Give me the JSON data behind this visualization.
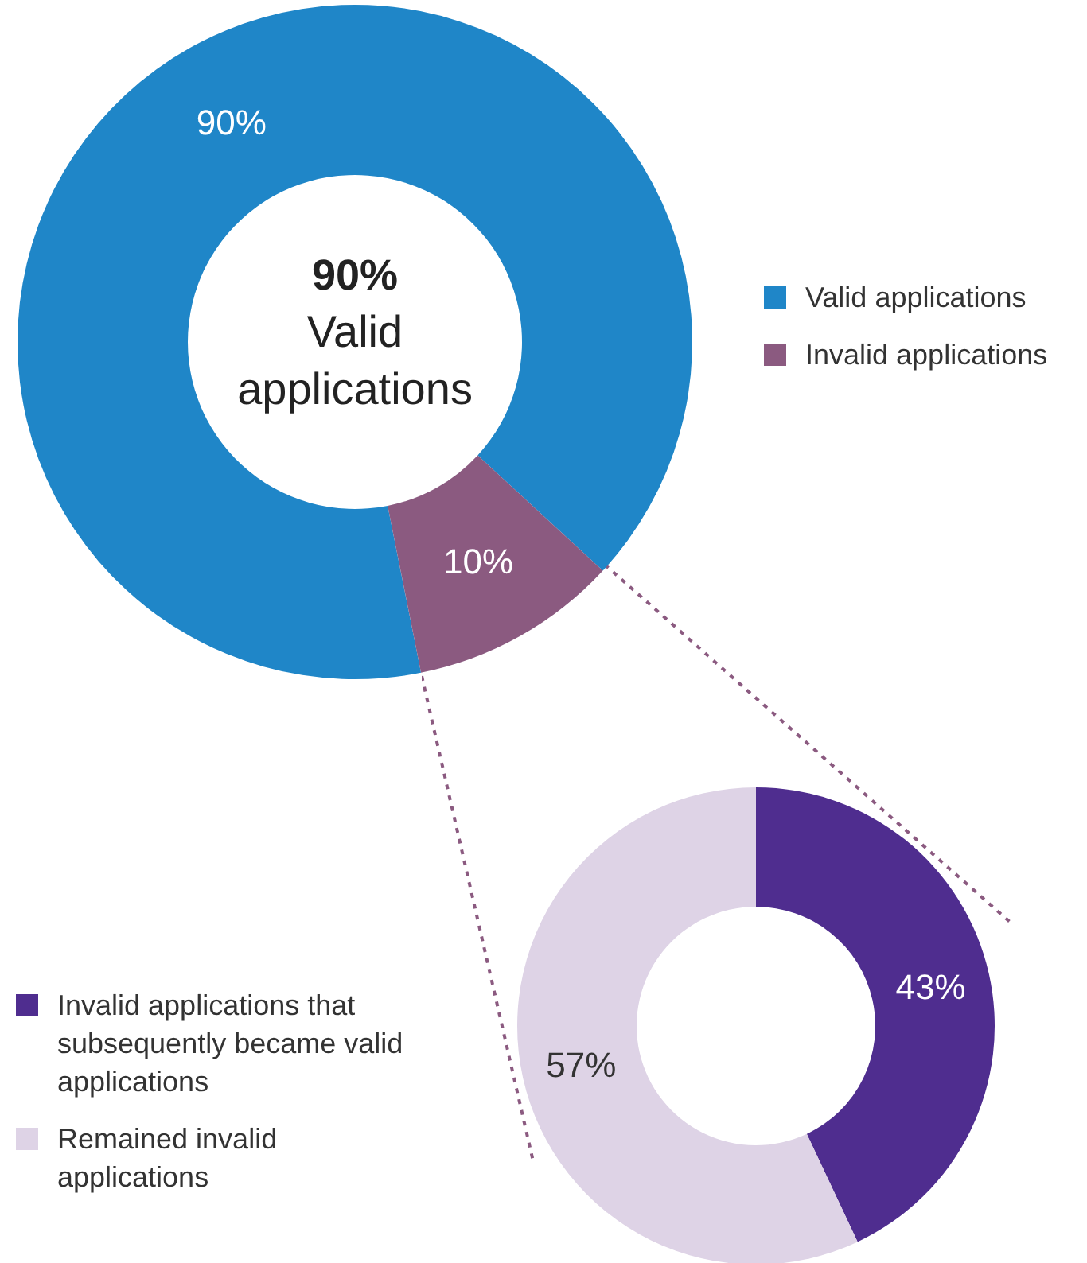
{
  "chart_data": [
    {
      "type": "donut",
      "categories": [
        "Valid applications",
        "Invalid applications"
      ],
      "values": [
        90,
        10
      ],
      "colors": [
        "#1f86c8",
        "#8b5a80"
      ],
      "value_labels": [
        "90%",
        "10%"
      ],
      "annotations": [
        "90%",
        "Valid applications"
      ],
      "legend": "right"
    },
    {
      "type": "donut",
      "categories": [
        "Invalid applications that subsequently became valid applications",
        "Remained invalid applications"
      ],
      "values": [
        43,
        57
      ],
      "colors": [
        "#4f2d8f",
        "#ded3e6"
      ],
      "value_labels": [
        "43%",
        "57%"
      ],
      "legend": "bottom left"
    }
  ]
}
